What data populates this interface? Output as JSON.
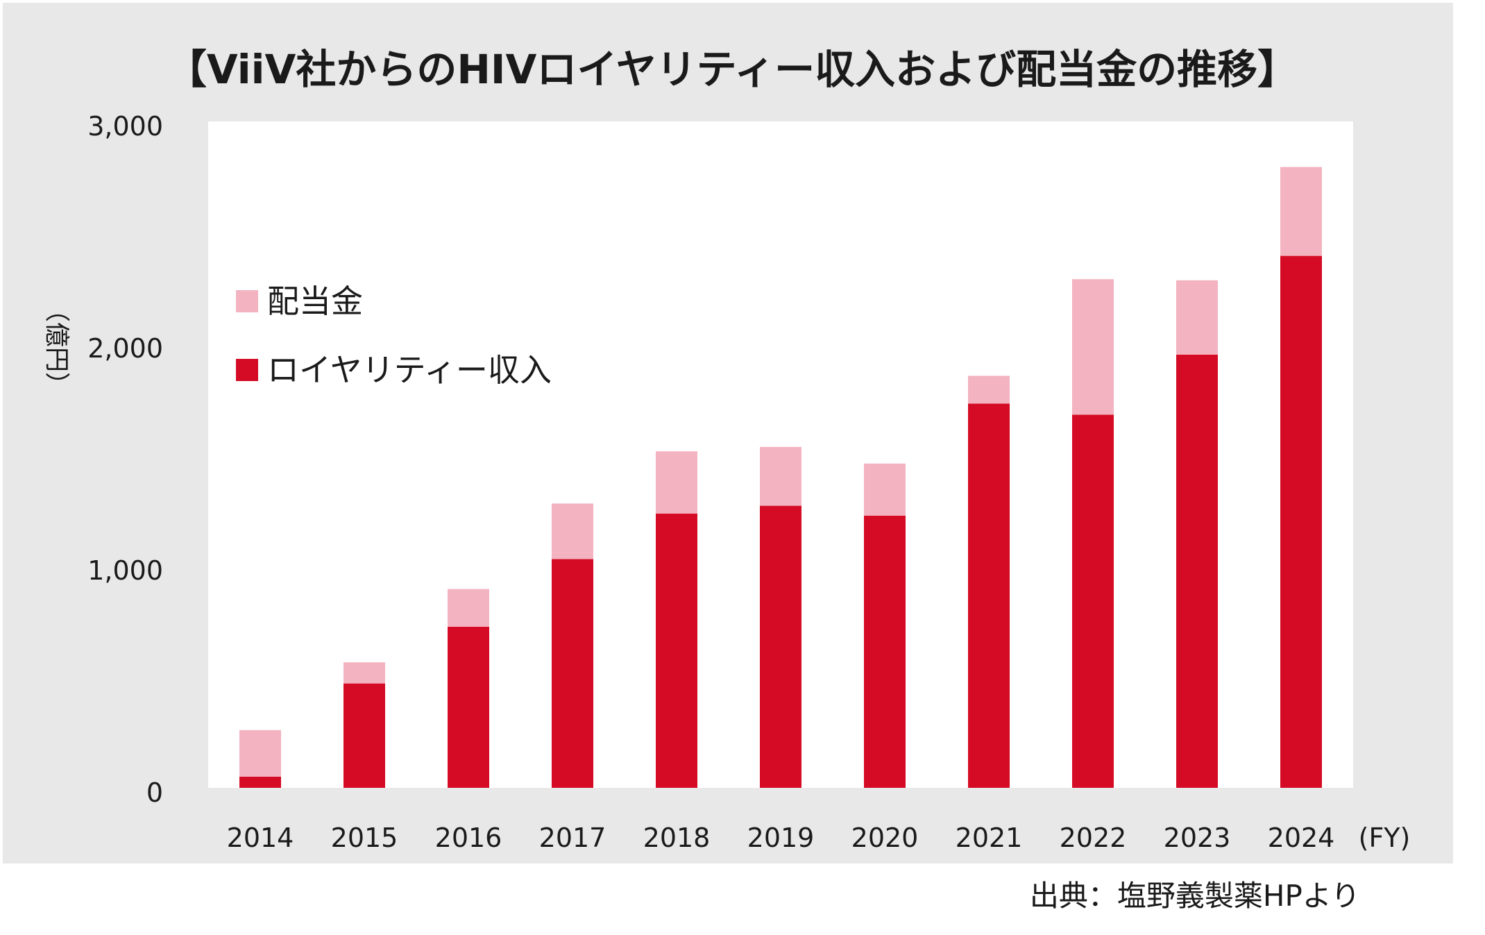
{
  "chart_data": {
    "type": "bar",
    "stacked": true,
    "title": "【ViiV社からのHIVロイヤリティー収入および配当金の推移】",
    "ylabel": "（億円）",
    "xlabel": "(FY)",
    "ylim": [
      0,
      3000
    ],
    "yticks": [
      0,
      1000,
      2000,
      3000
    ],
    "ytick_labels": [
      "0",
      "1,000",
      "2,000",
      "3,000"
    ],
    "categories": [
      "2014",
      "2015",
      "2016",
      "2017",
      "2018",
      "2019",
      "2020",
      "2021",
      "2022",
      "2023",
      "2024"
    ],
    "series": [
      {
        "name": "ロイヤリティー収入",
        "color": "#d50b25",
        "values": [
          50,
          470,
          725,
          1030,
          1235,
          1270,
          1225,
          1730,
          1680,
          1950,
          2395
        ]
      },
      {
        "name": "配当金",
        "color": "#f3b3c0",
        "values": [
          210,
          95,
          170,
          250,
          280,
          265,
          235,
          125,
          610,
          335,
          400
        ]
      }
    ],
    "legend": {
      "placement": "upper-left",
      "order": [
        "配当金",
        "ロイヤリティー収入"
      ]
    },
    "grid": false
  },
  "source": "出典：塩野義製薬HPより",
  "colors": {
    "panel_background": "#e8e8e8",
    "plot_background": "#ffffff",
    "royalty": "#d50b25",
    "dividend": "#f3b3c0"
  }
}
